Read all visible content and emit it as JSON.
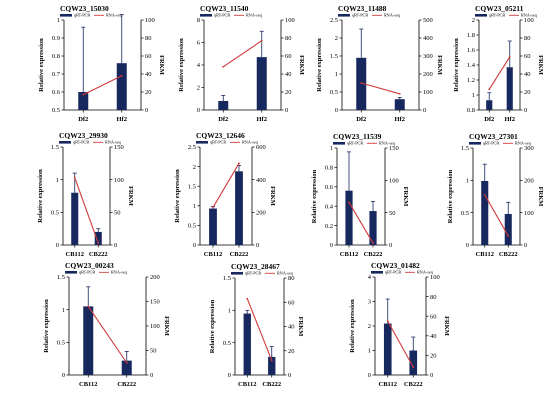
{
  "colors": {
    "bar": "#17285e",
    "line": "#d13b3b",
    "axis": "#000000"
  },
  "labels": {
    "ylabel": "Relative expression",
    "y2label": "FRKM",
    "legend_bar": "qRT-PCR",
    "legend_line": "RNA-seq"
  },
  "chart_data": [
    {
      "type": "bar",
      "title": "CQW23_15030",
      "categories": [
        "Df2",
        "Hf2"
      ],
      "values": [
        0.6,
        0.76
      ],
      "errors": [
        0.36,
        0.27
      ],
      "ylim": [
        0.5,
        1.0
      ],
      "yticks": [
        0.5,
        0.6,
        0.7,
        0.8,
        0.9,
        1.0
      ],
      "y2lim": [
        0,
        100
      ],
      "y2ticks": [
        0,
        20,
        40,
        60,
        80,
        100
      ],
      "line": [
        17,
        38
      ]
    },
    {
      "type": "bar",
      "title": "CQW23_11540",
      "categories": [
        "Df2",
        "Hf2"
      ],
      "values": [
        0.8,
        4.7
      ],
      "errors": [
        0.5,
        2.3
      ],
      "ylim": [
        0,
        8
      ],
      "yticks": [
        0,
        2,
        4,
        6,
        8
      ],
      "y2lim": [
        0,
        100
      ],
      "y2ticks": [
        0,
        20,
        40,
        60,
        80,
        100
      ],
      "line": [
        48,
        77
      ]
    },
    {
      "type": "bar",
      "title": "CQW23_11488",
      "categories": [
        "Df2",
        "Hf2"
      ],
      "values": [
        1.45,
        0.3
      ],
      "errors": [
        0.8,
        0.05
      ],
      "ylim": [
        0,
        2.5
      ],
      "yticks": [
        0,
        0.5,
        1.0,
        1.5,
        2.0,
        2.5
      ],
      "y2lim": [
        0,
        500
      ],
      "y2ticks": [
        0,
        100,
        200,
        300,
        400,
        500
      ],
      "line": [
        150,
        90
      ]
    },
    {
      "type": "bar",
      "title": "CQW23_05211",
      "categories": [
        "Df2",
        "Hf2"
      ],
      "values": [
        0.93,
        1.37
      ],
      "errors": [
        0.1,
        0.35
      ],
      "ylim": [
        0.8,
        2.0
      ],
      "yticks": [
        0.8,
        1.0,
        1.2,
        1.4,
        1.6,
        1.8,
        2.0
      ],
      "y2lim": [
        0,
        100
      ],
      "y2ticks": [
        0,
        20,
        40,
        60,
        80,
        100
      ],
      "line": [
        23,
        59
      ]
    },
    {
      "type": "bar",
      "title": "CQW23_29930",
      "categories": [
        "CB112",
        "CB222"
      ],
      "values": [
        0.8,
        0.2
      ],
      "errors": [
        0.3,
        0.05
      ],
      "ylim": [
        0,
        1.5
      ],
      "yticks": [
        0,
        0.5,
        1.0,
        1.5
      ],
      "y2lim": [
        0,
        150
      ],
      "y2ticks": [
        0,
        50,
        100,
        150
      ],
      "line": [
        103,
        3
      ]
    },
    {
      "type": "bar",
      "title": "CQW23_12646",
      "categories": [
        "CB112",
        "CB222"
      ],
      "values": [
        0.93,
        1.88
      ],
      "errors": [
        0.05,
        0.15
      ],
      "ylim": [
        0,
        2.5
      ],
      "yticks": [
        0,
        0.5,
        1.0,
        1.5,
        2.0,
        2.5
      ],
      "y2lim": [
        0,
        600
      ],
      "y2ticks": [
        0,
        200,
        400,
        600
      ],
      "line": [
        230,
        500
      ]
    },
    {
      "type": "bar",
      "title": "CQW23_11539",
      "categories": [
        "CB112",
        "CB222"
      ],
      "values": [
        0.56,
        0.35
      ],
      "errors": [
        0.4,
        0.1
      ],
      "ylim": [
        0,
        1.0
      ],
      "yticks": [
        0,
        0.2,
        0.4,
        0.6,
        0.8,
        1.0
      ],
      "y2lim": [
        0,
        150
      ],
      "y2ticks": [
        0,
        50,
        100,
        150
      ],
      "line": [
        66,
        3
      ]
    },
    {
      "type": "bar",
      "title": "CQW23_27301",
      "categories": [
        "CB112",
        "CB222"
      ],
      "values": [
        0.99,
        0.48
      ],
      "errors": [
        0.26,
        0.18
      ],
      "ylim": [
        0,
        1.5
      ],
      "yticks": [
        0,
        0.5,
        1.0,
        1.5
      ],
      "y2lim": [
        0,
        300
      ],
      "y2ticks": [
        0,
        100,
        200,
        300
      ],
      "line": [
        155,
        28
      ]
    },
    {
      "type": "bar",
      "title": "CQW23_00243",
      "categories": [
        "CB112",
        "CB222"
      ],
      "values": [
        1.05,
        0.22
      ],
      "errors": [
        0.3,
        0.14
      ],
      "ylim": [
        0,
        1.5
      ],
      "yticks": [
        0,
        0.5,
        1.0,
        1.5
      ],
      "y2lim": [
        0,
        200
      ],
      "y2ticks": [
        0,
        50,
        100,
        150,
        200
      ],
      "line": [
        140,
        25
      ]
    },
    {
      "type": "bar",
      "title": "CQW23_28467",
      "categories": [
        "CB112",
        "CB222"
      ],
      "values": [
        0.95,
        0.28
      ],
      "errors": [
        0.05,
        0.16
      ],
      "ylim": [
        0,
        1.5
      ],
      "yticks": [
        0,
        0.5,
        1.0,
        1.5
      ],
      "y2lim": [
        0,
        80
      ],
      "y2ticks": [
        0,
        20,
        40,
        60,
        80
      ],
      "line": [
        63,
        12
      ]
    },
    {
      "type": "bar",
      "title": "CQW23_01482",
      "categories": [
        "CB112",
        "CB222"
      ],
      "values": [
        2.1,
        1.0
      ],
      "errors": [
        1.0,
        0.55
      ],
      "ylim": [
        0,
        4
      ],
      "yticks": [
        0,
        1,
        2,
        3,
        4
      ],
      "y2lim": [
        0,
        100
      ],
      "y2ticks": [
        0,
        20,
        40,
        60,
        80,
        100
      ],
      "line": [
        55,
        8
      ]
    }
  ]
}
